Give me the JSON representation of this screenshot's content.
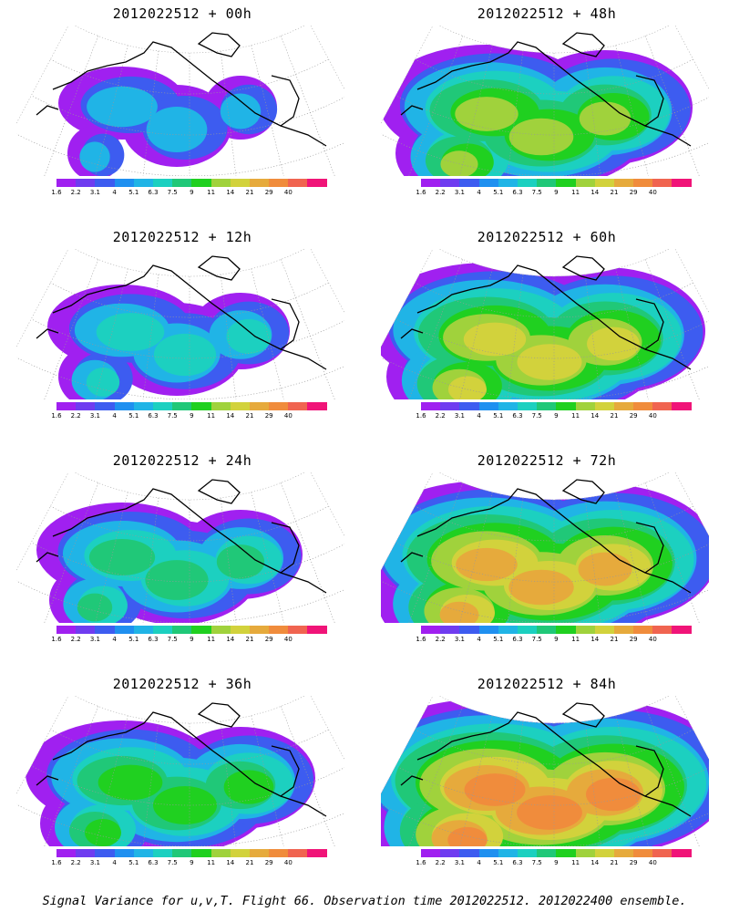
{
  "panels": [
    {
      "title": "2012022512 + 00h",
      "intensity": 0
    },
    {
      "title": "2012022512 + 48h",
      "intensity": 4
    },
    {
      "title": "2012022512 + 12h",
      "intensity": 1
    },
    {
      "title": "2012022512 + 60h",
      "intensity": 5
    },
    {
      "title": "2012022512 + 24h",
      "intensity": 2
    },
    {
      "title": "2012022512 + 72h",
      "intensity": 6
    },
    {
      "title": "2012022512 + 36h",
      "intensity": 3
    },
    {
      "title": "2012022512 + 84h",
      "intensity": 7
    }
  ],
  "colorbar": {
    "colors": [
      "#a020f0",
      "#6f3cf0",
      "#3d5cf0",
      "#1f90f0",
      "#20b4e6",
      "#1cd0c0",
      "#20c878",
      "#20d020",
      "#a0d23c",
      "#d2d23c",
      "#e6aa3c",
      "#f08c3c",
      "#f06450",
      "#f01478"
    ],
    "labels": [
      "1.6",
      "2.2",
      "3.1",
      "4",
      "5.1",
      "6.3",
      "7.5",
      "9",
      "11",
      "14",
      "21",
      "29",
      "40"
    ]
  },
  "caption": "Signal Variance for u,v,T. Flight 66. Observation time 2012022512. 2012022400 ensemble."
}
